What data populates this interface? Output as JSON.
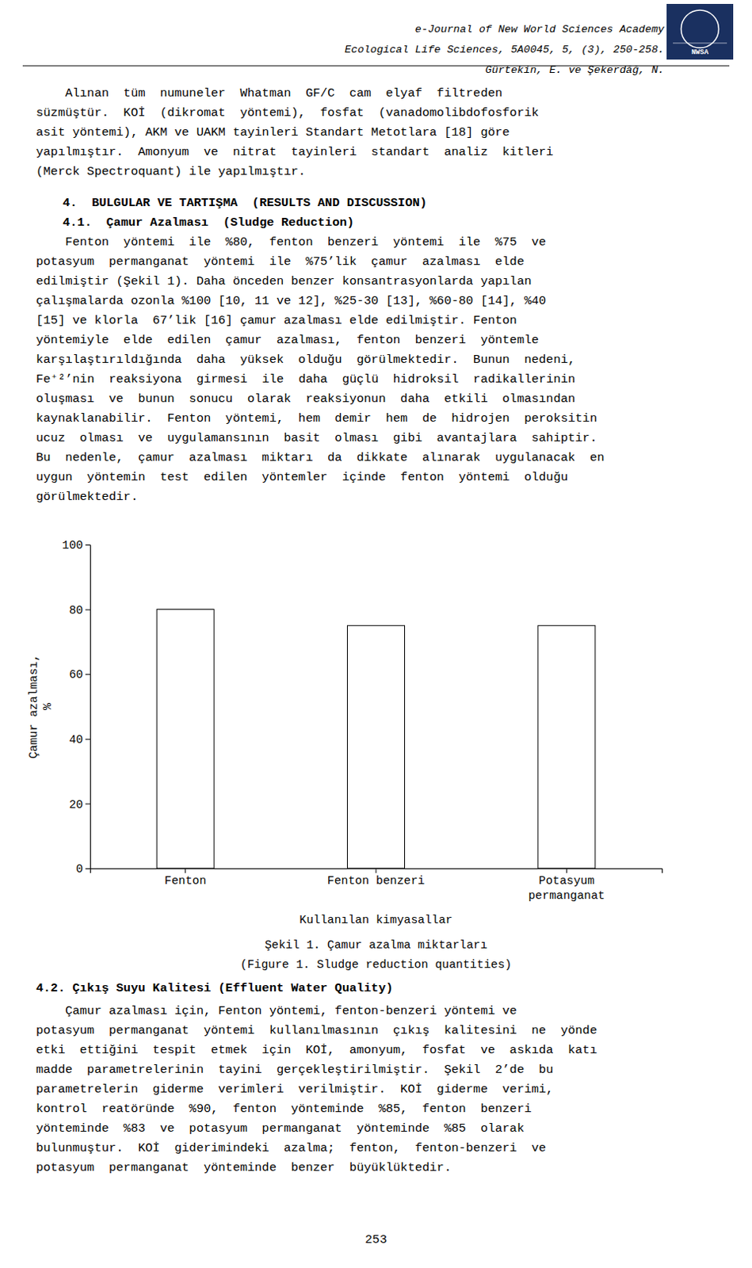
{
  "chart_data": {
    "type": "bar",
    "title": "Şekil 1. Çamur azalma miktarları",
    "subtitle": "(Figure 1. Sludge reduction quantities)",
    "x_label": "Kullanılan kimyasallar",
    "y_label": "Çamur azalması,\n%",
    "categories": [
      "Fenton",
      "Fenton benzeri",
      "Potasyum\npermanganat"
    ],
    "values": [
      80,
      75,
      75
    ],
    "color": "#ffffff",
    "ylim": [
      0,
      100
    ],
    "yticks": [
      0,
      20,
      40,
      60,
      80,
      100
    ],
    "grid": false
  },
  "page": {
    "header_lines": [
      "e-Journal of New World Sciences Academy",
      "Ecological Life Sciences, 5A0045, 5, (3), 250-258.",
      "Gürtekin, E. ve Şekerdăğ, N."
    ],
    "logo_text": "NWSA",
    "para1_lines": [
      "    Alınan  tüm  numuneler  Whatman  GF/C  cam  elyaf  filtreden",
      "süzmüştür.  KOİ  (dikromat  yöntemi),  fosfat  (vanadomolibdofosforik",
      "asit yöntemi), AKM ve UAKM tayinleri Standart Metotlara [18] göre",
      "yapılmıştır.  Amonyum  ve  nitrat  tayinleri  standart  analiz  kitleri",
      "(Merck Spectroquant) ile yapılmıştır."
    ],
    "section4_header": "4.  BULGULAR VE TARTIŞMA  (RESULTS AND DISCUSSION)",
    "section41_header": "4.1.  Çamur Azalması  (Sludge Reduction)",
    "para2_lines": [
      "    Fenton  yöntemi  ile  %80,  fenton  benzeri  yöntemi  ile  %75  ve",
      "potasyum  permanganat  yöntemi  ile  %75’lik  çamur  azalması  elde",
      "edilmiştir (Şekil 1). Daha önceden benzer konsantrasyonlarda yapılan",
      "çalışmalarda ozonla %100 [10, 11 ve 12], %25-30 [13], %60-80 [14], %40",
      "[15] ve klorla  67’lik [16] çamur azalması elde edilmiştir. Fenton",
      "yöntemiyle  elde  edilen  çamur  azalması,  fenton  benzeri  yöntemle",
      "karşılaştırıldığında  daha  yüksek  olduğu  görülmektedir.  Bunun  nedeni,",
      "Fe⁺²’nin  reaksiyona  girmesi  ile  daha  güçlü  hidroksil  radikallerinin",
      "oluşması  ve  bunun  sonucu  olarak  reaksiyonun  daha  etkili  olmasından",
      "kaynaklanabilir.  Fenton  yöntemi,  hem  demir  hem  de  hidrojen  peroksitin",
      "ucuz  olması  ve  uygulamansının  basit  olması  gibi  avantajlara  sahiptir.",
      "Bu  nedenle,  çamur  azalması  miktarı  da  dikkate  alınarak  uygulanacak  en",
      "uygun  yöntemin  test  edilen  yöntemler  içinde  fenton  yöntemi  olduğu",
      "görülmektedir."
    ],
    "section42_header": "4.2. Çıkış Suyu Kalitesi (Effluent Water Quality)",
    "para3_lines": [
      "    Çamur azalması için, Fenton yöntemi, fenton-benzeri yöntemi ve",
      "potasyum  permanganat  yöntemi  kullanılmasının  çıkış  kalitesini  ne  yönde",
      "etki  ettiğini  tespit  etmek  için  KOİ,  amonyum,  fosfat  ve  askıda  katı",
      "madde  parametrelerinin  tayini  gerçekleştirilmiştir.  Şekil  2’de  bu",
      "parametrelerin  giderme  verimleri  verilmiştir.  KOİ  giderme  verimi,",
      "kontrol  reatöründe  %90,  fenton  yönteminde  %85,  fenton  benzeri",
      "yönteminde  %83  ve  potasyum  permanganat  yönteminde  %85  olarak",
      "bulunmuştur.  KOİ  giderimindeki  azalma;  fenton,  fenton-benzeri  ve",
      "potasyum  permanganat  yönteminde  benzer  büyüklüktedir."
    ],
    "page_number": "253"
  }
}
